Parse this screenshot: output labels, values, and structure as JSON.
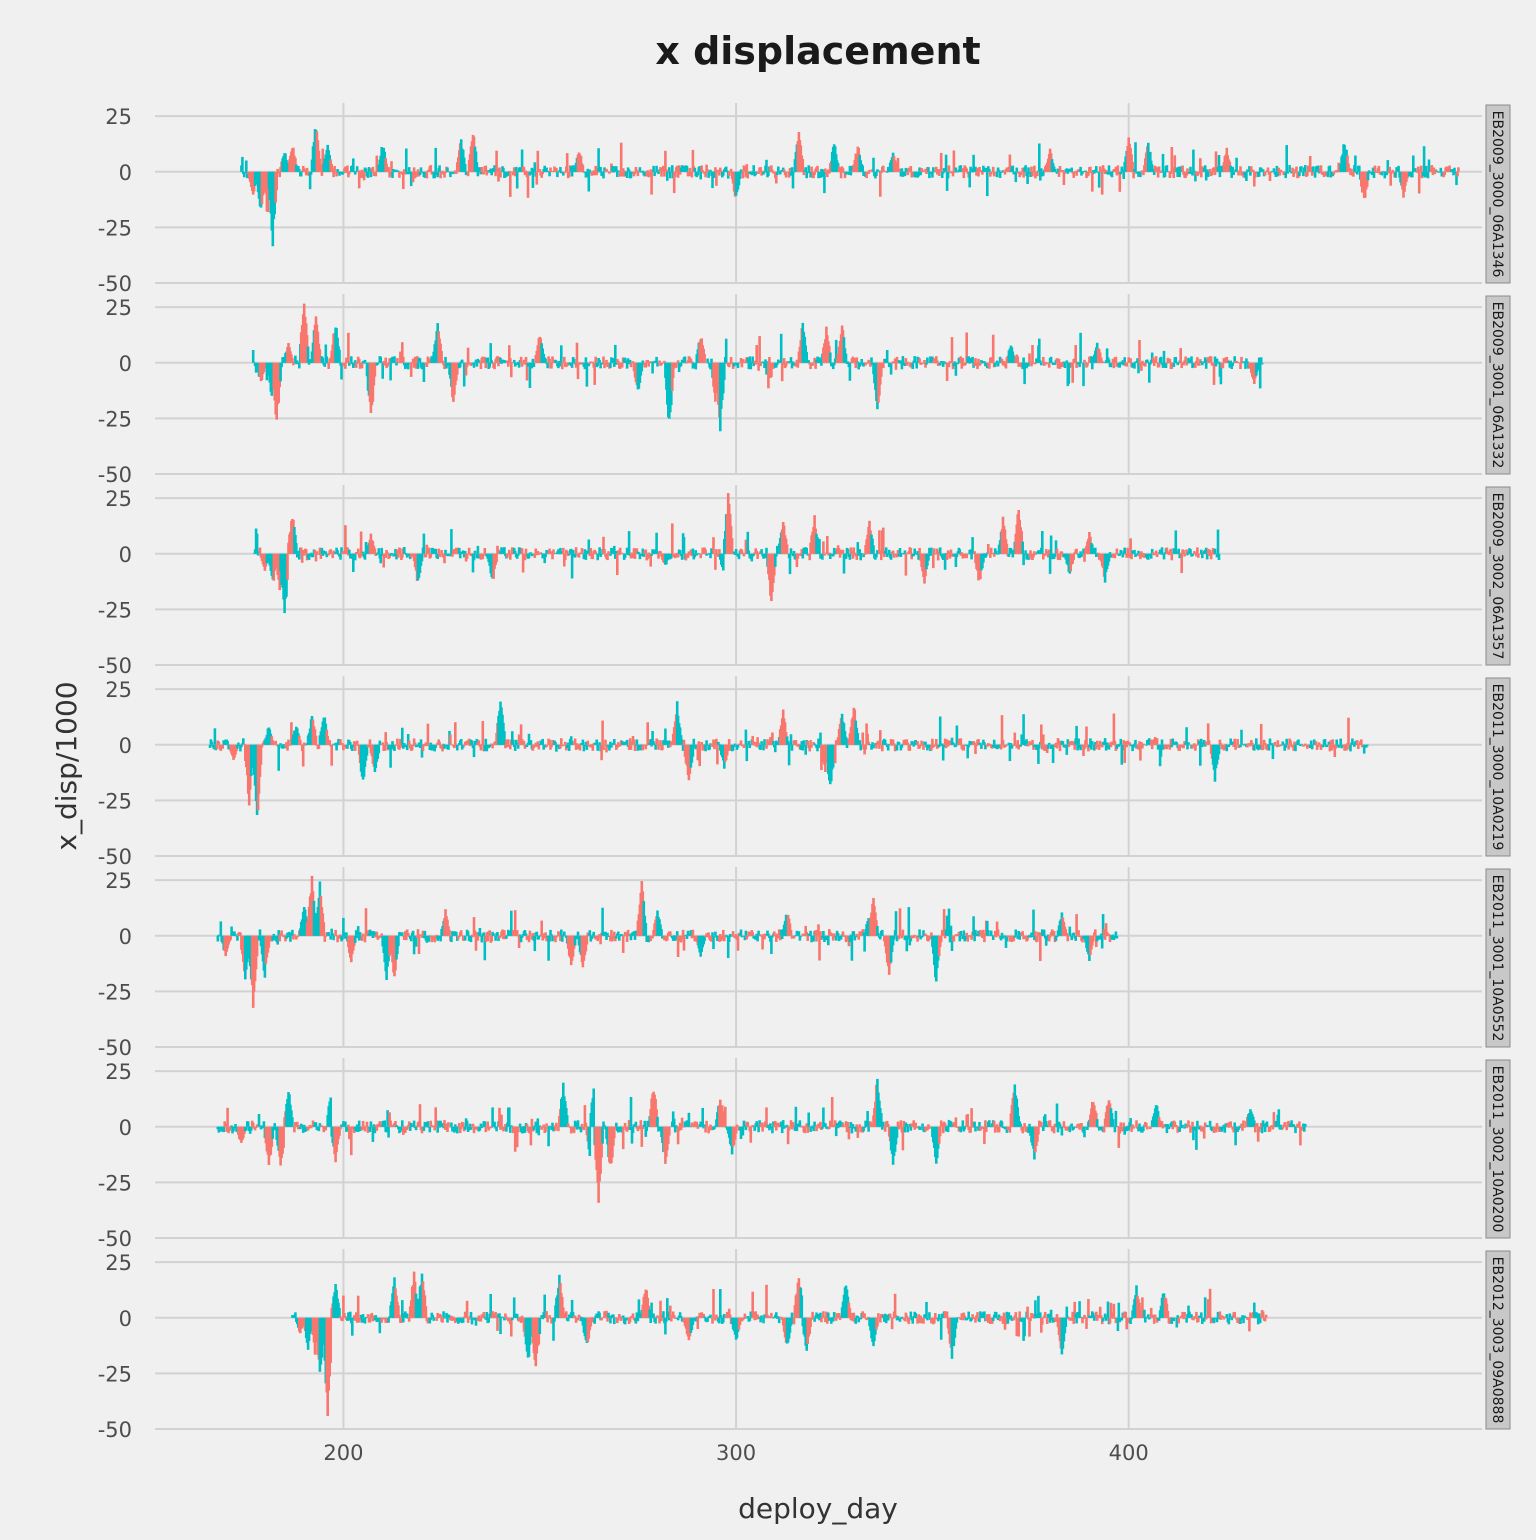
{
  "chart_data": {
    "type": "bar",
    "title": "x displacement",
    "xlabel": "deploy_day",
    "ylabel": "x_disp/1000",
    "xlim": [
      152,
      490
    ],
    "ylim": [
      -50,
      30
    ],
    "x_ticks": [
      200,
      300,
      400
    ],
    "y_ticks": [
      25,
      0,
      -25,
      -50
    ],
    "grid": true,
    "legend": "none",
    "colors": {
      "positive_phase": "#f8766d",
      "negative_phase": "#00bfc4"
    },
    "facets": [
      {
        "label": "EB2009_3000_06A1346",
        "range": [
          174,
          484
        ],
        "seed": 11,
        "spikes": [
          [
            177,
            -12
          ],
          [
            179,
            -20
          ],
          [
            181,
            -28
          ],
          [
            182,
            -34
          ],
          [
            185,
            10
          ],
          [
            187,
            14
          ],
          [
            193,
            25
          ],
          [
            196,
            15
          ],
          [
            210,
            14
          ],
          [
            230,
            16
          ],
          [
            233,
            20
          ],
          [
            260,
            11
          ],
          [
            300,
            -14
          ],
          [
            316,
            20
          ],
          [
            325,
            14
          ],
          [
            331,
            13
          ],
          [
            340,
            10
          ],
          [
            380,
            11
          ],
          [
            400,
            17
          ],
          [
            405,
            14
          ],
          [
            425,
            11
          ],
          [
            455,
            16
          ],
          [
            460,
            -15
          ],
          [
            470,
            -12
          ]
        ]
      },
      {
        "label": "EB2009_3001_06A1332",
        "range": [
          177,
          434
        ],
        "seed": 23,
        "spikes": [
          [
            179,
            -10
          ],
          [
            182,
            -22
          ],
          [
            183,
            -30
          ],
          [
            186,
            10
          ],
          [
            190,
            30
          ],
          [
            193,
            23
          ],
          [
            198,
            21
          ],
          [
            207,
            -28
          ],
          [
            224,
            20
          ],
          [
            228,
            -20
          ],
          [
            250,
            15
          ],
          [
            275,
            -15
          ],
          [
            283,
            -30
          ],
          [
            291,
            14
          ],
          [
            295,
            -24
          ],
          [
            296,
            -32
          ],
          [
            317,
            20
          ],
          [
            323,
            17
          ],
          [
            327,
            18
          ],
          [
            336,
            -23
          ],
          [
            370,
            9
          ],
          [
            392,
            10
          ],
          [
            432,
            -11
          ]
        ]
      },
      {
        "label": "EB2009_3002_06A1357",
        "range": [
          177,
          423
        ],
        "seed": 37,
        "spikes": [
          [
            180,
            -8
          ],
          [
            182,
            -15
          ],
          [
            184,
            -24
          ],
          [
            185,
            -31
          ],
          [
            187,
            20
          ],
          [
            207,
            10
          ],
          [
            219,
            -15
          ],
          [
            238,
            -14
          ],
          [
            282,
            -6
          ],
          [
            297,
            -12
          ],
          [
            298,
            28
          ],
          [
            309,
            -24
          ],
          [
            312,
            17
          ],
          [
            320,
            18
          ],
          [
            334,
            17
          ],
          [
            348,
            -14
          ],
          [
            362,
            -15
          ],
          [
            368,
            17
          ],
          [
            372,
            22
          ],
          [
            385,
            -10
          ],
          [
            390,
            10
          ],
          [
            394,
            -13
          ]
        ]
      },
      {
        "label": "EB2011_3000_10A0219",
        "range": [
          166,
          461
        ],
        "seed": 51,
        "spikes": [
          [
            172,
            -8
          ],
          [
            176,
            -28
          ],
          [
            178,
            -38
          ],
          [
            181,
            9
          ],
          [
            188,
            10
          ],
          [
            192,
            15
          ],
          [
            195,
            16
          ],
          [
            205,
            -20
          ],
          [
            208,
            -14
          ],
          [
            240,
            23
          ],
          [
            285,
            20
          ],
          [
            288,
            -19
          ],
          [
            297,
            -11
          ],
          [
            312,
            16
          ],
          [
            323,
            -18
          ],
          [
            324,
            -23
          ],
          [
            327,
            16
          ],
          [
            330,
            20
          ],
          [
            422,
            -17
          ]
        ]
      },
      {
        "label": "EB2011_3001_10A0552",
        "range": [
          168,
          397
        ],
        "seed": 67,
        "spikes": [
          [
            170,
            -10
          ],
          [
            175,
            -23
          ],
          [
            177,
            -33
          ],
          [
            180,
            -20
          ],
          [
            190,
            15
          ],
          [
            192,
            29
          ],
          [
            194,
            25
          ],
          [
            202,
            -12
          ],
          [
            211,
            -20
          ],
          [
            213,
            -21
          ],
          [
            226,
            12
          ],
          [
            258,
            -16
          ],
          [
            261,
            -17
          ],
          [
            276,
            25
          ],
          [
            280,
            12
          ],
          [
            291,
            -10
          ],
          [
            313,
            12
          ],
          [
            334,
            12
          ],
          [
            335,
            18
          ],
          [
            339,
            -19
          ],
          [
            351,
            -23
          ],
          [
            383,
            11
          ],
          [
            390,
            -12
          ]
        ]
      },
      {
        "label": "EB2011_3002_10A0200",
        "range": [
          168,
          445
        ],
        "seed": 79,
        "spikes": [
          [
            174,
            -9
          ],
          [
            181,
            -20
          ],
          [
            184,
            -21
          ],
          [
            186,
            18
          ],
          [
            197,
            20
          ],
          [
            198,
            -16
          ],
          [
            256,
            20
          ],
          [
            263,
            -17
          ],
          [
            264,
            25
          ],
          [
            265,
            -35
          ],
          [
            268,
            -22
          ],
          [
            279,
            20
          ],
          [
            282,
            -18
          ],
          [
            296,
            15
          ],
          [
            299,
            -13
          ],
          [
            336,
            23
          ],
          [
            340,
            -18
          ],
          [
            351,
            -18
          ],
          [
            371,
            22
          ],
          [
            376,
            -16
          ],
          [
            391,
            14
          ],
          [
            395,
            15
          ],
          [
            407,
            12
          ],
          [
            431,
            10
          ]
        ]
      },
      {
        "label": "EB2012_3003_09A0888",
        "range": [
          187,
          435
        ],
        "seed": 97,
        "spikes": [
          [
            189,
            -8
          ],
          [
            191,
            -15
          ],
          [
            193,
            -22
          ],
          [
            194,
            -29
          ],
          [
            196,
            -48
          ],
          [
            198,
            16
          ],
          [
            213,
            20
          ],
          [
            218,
            22
          ],
          [
            220,
            22
          ],
          [
            247,
            -23
          ],
          [
            249,
            -26
          ],
          [
            255,
            20
          ],
          [
            262,
            -15
          ],
          [
            277,
            15
          ],
          [
            288,
            -13
          ],
          [
            300,
            -12
          ],
          [
            313,
            -15
          ],
          [
            316,
            22
          ],
          [
            318,
            -17
          ],
          [
            328,
            17
          ],
          [
            335,
            -15
          ],
          [
            355,
            -20
          ],
          [
            383,
            -18
          ],
          [
            402,
            15
          ],
          [
            409,
            14
          ]
        ]
      }
    ]
  }
}
